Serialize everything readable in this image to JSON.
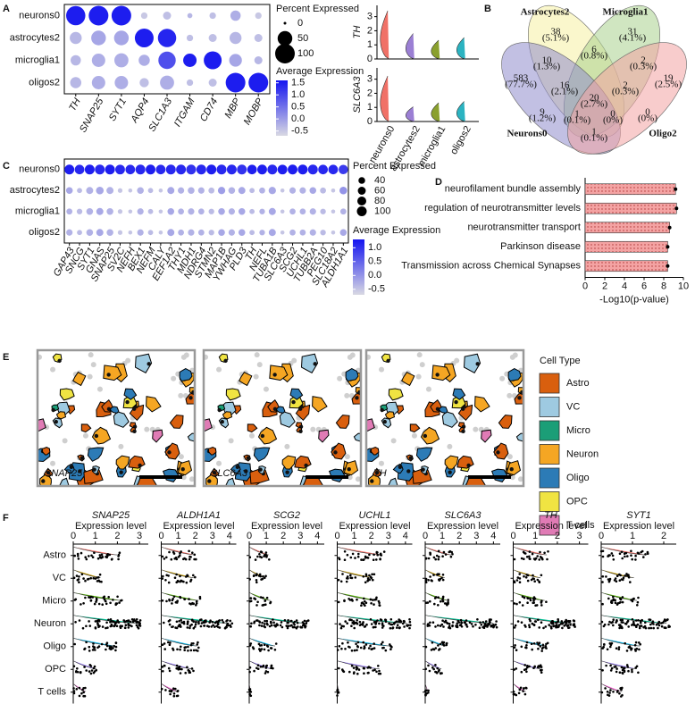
{
  "chart_data": [
    {
      "type": "dotplot",
      "panel": "A",
      "categories": [
        "TH",
        "SNAP25",
        "SYT1",
        "AQP4",
        "SLC1A3",
        "ITGAM",
        "CD74",
        "MBP",
        "MOBP"
      ],
      "series": [
        {
          "name": "neurons0",
          "pct": [
            95,
            100,
            100,
            5,
            10,
            2,
            5,
            20,
            5
          ],
          "avg": [
            1.5,
            1.5,
            1.5,
            -0.5,
            -0.4,
            -0.3,
            -0.4,
            -0.2,
            -0.5
          ]
        },
        {
          "name": "astrocytes2",
          "pct": [
            30,
            50,
            50,
            90,
            85,
            5,
            10,
            30,
            10
          ],
          "avg": [
            -0.3,
            -0.1,
            -0.1,
            1.5,
            1.4,
            -0.4,
            -0.4,
            -0.3,
            -0.4
          ]
        },
        {
          "name": "microglia1",
          "pct": [
            20,
            40,
            45,
            25,
            75,
            40,
            80,
            35,
            10
          ],
          "avg": [
            -0.3,
            -0.2,
            -0.2,
            -0.2,
            0.9,
            1.5,
            1.5,
            -0.1,
            -0.3
          ]
        },
        {
          "name": "oligos2",
          "pct": [
            25,
            40,
            40,
            15,
            45,
            5,
            10,
            100,
            100
          ],
          "avg": [
            -0.3,
            -0.2,
            -0.2,
            -0.4,
            -0.2,
            -0.4,
            -0.4,
            1.5,
            1.5
          ]
        }
      ],
      "size_legend_title": "Percent Expressed",
      "sizelim": [
        0,
        100
      ],
      "size_ticks": [
        0,
        50,
        100
      ],
      "color_legend_title": "Average Expression",
      "colorlim": [
        -0.7,
        1.6
      ],
      "color_ticks": [
        1.5,
        {
          "value": 1,
          "label": "1.0"
        },
        0.5,
        {
          "value": 0,
          "label": "0.0"
        },
        -0.5
      ],
      "colors": [
        "#d9d9e3",
        "#1414f0"
      ]
    },
    {
      "type": "violin",
      "categories": [
        "neurons0",
        "astrocytes2",
        "microglia1",
        "oligos2"
      ],
      "colors": [
        "#f07167",
        "#9b7fd4",
        "#8aa02e",
        "#2bb3c1"
      ],
      "series": [
        {
          "name": "TH",
          "values": [
            3.6,
            1.9,
            1.4,
            1.6
          ]
        },
        {
          "name": "SLC6A3",
          "values": [
            3.4,
            1.1,
            1.4,
            1.5
          ]
        }
      ],
      "ylim": [
        0,
        3.8
      ],
      "yticks": [
        0,
        1,
        2,
        3
      ]
    },
    {
      "type": "venn",
      "panel": "B",
      "sets": [
        {
          "name": "Astrocytes2",
          "color": "#f6f1a3",
          "label_color": "#9a8a20"
        },
        {
          "name": "Microglia1",
          "color": "#a9d18e",
          "label_color": "#3a7a2a"
        },
        {
          "name": "Neurons0",
          "color": "#8f8dcc",
          "label_color": "#2a4fa0"
        },
        {
          "name": "Oligo2",
          "color": "#f2a3a3",
          "label_color": "#c03030"
        }
      ],
      "regions": [
        {
          "count": 38,
          "percent": "(5.1%)"
        },
        {
          "count": 31,
          "percent": "(4.1%)"
        },
        {
          "count": 583,
          "percent": "(77.7%)"
        },
        {
          "count": 19,
          "percent": "(2.5%)"
        },
        {
          "count": 6,
          "percent": "(0.8%)"
        },
        {
          "count": 10,
          "percent": "(1.3%)"
        },
        {
          "count": 2,
          "percent": "(0.3%)"
        },
        {
          "count": 16,
          "percent": "(2.1%)"
        },
        {
          "count": 2,
          "percent": "(0.3%)"
        },
        {
          "count": 20,
          "percent": "(2.7%)"
        },
        {
          "count": 9,
          "percent": "(1.2%)"
        },
        {
          "count": 0,
          "percent": "(0%)"
        },
        {
          "count": 1,
          "percent": "(0.1%)"
        },
        {
          "count": 0,
          "percent": "(0%)"
        },
        {
          "count": 1,
          "percent": "(0.1%)"
        }
      ]
    },
    {
      "type": "dotplot",
      "panel": "C",
      "categories": [
        "GAP43",
        "SNCG",
        "SYT1",
        "GNAS",
        "SNAP25",
        "SV2C",
        "NEFH",
        "BEX1",
        "NEFM",
        "CALY",
        "EEF1A2",
        "THY1",
        "MDH1",
        "NDRG4",
        "STMN2",
        "MAP1B",
        "YWHAG",
        "PLD3",
        "TH",
        "NEFL",
        "TUBA1B",
        "SLC6A3",
        "SCG2",
        "UCHL1",
        "TUBB2A",
        "PEG10",
        "SLC18A2",
        "ALDH1A1"
      ],
      "series": [
        {
          "name": "neurons0",
          "pct": [
            98,
            95,
            100,
            100,
            100,
            97,
            95,
            100,
            98,
            95,
            100,
            100,
            98,
            100,
            100,
            100,
            100,
            98,
            95,
            98,
            100,
            97,
            98,
            100,
            100,
            95,
            95,
            90
          ],
          "avg": [
            1.2,
            1.1,
            1.2,
            1.1,
            1.2,
            1.1,
            1.1,
            1.1,
            1.2,
            1.1,
            1.1,
            1.1,
            1.0,
            1.1,
            1.2,
            1.1,
            1.1,
            1.0,
            1.2,
            1.2,
            1.1,
            1.2,
            1.2,
            1.2,
            1.1,
            1.1,
            1.1,
            0.9
          ]
        },
        {
          "name": "astrocytes2",
          "pct": [
            40,
            20,
            45,
            55,
            45,
            15,
            10,
            40,
            20,
            10,
            45,
            35,
            40,
            35,
            30,
            50,
            40,
            45,
            20,
            30,
            50,
            10,
            35,
            35,
            40,
            30,
            10,
            55
          ],
          "avg": [
            -0.2,
            -0.4,
            -0.3,
            -0.2,
            -0.3,
            -0.5,
            -0.5,
            -0.3,
            -0.4,
            -0.5,
            -0.2,
            -0.3,
            -0.3,
            -0.3,
            -0.4,
            -0.1,
            -0.3,
            -0.2,
            -0.4,
            -0.3,
            -0.2,
            -0.5,
            -0.3,
            -0.3,
            -0.2,
            -0.4,
            -0.5,
            0
          ]
        },
        {
          "name": "microglia1",
          "pct": [
            30,
            25,
            40,
            45,
            40,
            15,
            10,
            35,
            20,
            10,
            40,
            30,
            35,
            30,
            25,
            40,
            35,
            40,
            20,
            25,
            45,
            10,
            30,
            30,
            35,
            25,
            10,
            30
          ],
          "avg": [
            -0.3,
            -0.4,
            -0.3,
            -0.2,
            -0.3,
            -0.5,
            -0.5,
            -0.3,
            -0.4,
            -0.5,
            -0.2,
            -0.3,
            -0.3,
            -0.3,
            -0.4,
            -0.2,
            -0.3,
            -0.2,
            -0.4,
            -0.3,
            -0.2,
            -0.5,
            -0.3,
            -0.3,
            -0.3,
            -0.4,
            -0.5,
            -0.3
          ]
        },
        {
          "name": "oligos2",
          "pct": [
            35,
            20,
            40,
            45,
            40,
            15,
            10,
            35,
            20,
            10,
            45,
            30,
            35,
            30,
            25,
            40,
            35,
            40,
            20,
            25,
            45,
            10,
            30,
            30,
            35,
            25,
            10,
            40
          ],
          "avg": [
            -0.3,
            -0.4,
            -0.3,
            -0.2,
            -0.3,
            -0.5,
            -0.5,
            -0.3,
            -0.4,
            -0.5,
            -0.2,
            -0.3,
            -0.3,
            -0.3,
            -0.4,
            -0.2,
            -0.3,
            -0.2,
            -0.4,
            -0.3,
            -0.2,
            -0.5,
            -0.3,
            -0.3,
            -0.3,
            -0.4,
            -0.5,
            -0.2
          ]
        }
      ],
      "size_legend_title": "Percent Expressed",
      "sizelim": [
        0,
        100
      ],
      "size_ticks": [
        40,
        60,
        80,
        100
      ],
      "color_legend_title": "Average Expression",
      "colorlim": [
        -0.7,
        1.3
      ],
      "color_ticks": [
        {
          "value": 1,
          "label": "1.0"
        },
        0.5,
        {
          "value": 0,
          "label": "0.0"
        },
        -0.5
      ],
      "colors": [
        "#d9d9e3",
        "#1414f0"
      ]
    },
    {
      "type": "barh",
      "panel": "D",
      "categories": [
        "neurofilament bundle assembly",
        "regulation of neurotransmitter levels",
        "neurotransmitter transport",
        "Parkinson disease",
        "Transmission across Chemical Synapses"
      ],
      "values": [
        9.2,
        9.3,
        8.6,
        8.4,
        8.4
      ],
      "errors": [
        0.15,
        0.15,
        0.15,
        0.15,
        0.15
      ],
      "xlabel": "-Log10(p-value)",
      "xlim": [
        0,
        10
      ],
      "xticks": [
        0,
        2,
        4,
        6,
        8,
        10
      ],
      "color": "#f4a3a3"
    },
    {
      "type": "spatial",
      "panel": "E",
      "images": [
        "SNAP25",
        "SLC6A3",
        "TH"
      ],
      "legend_title": "Cell Type",
      "categories": [
        "Astro",
        "VC",
        "Micro",
        "Neuron",
        "Oligo",
        "OPC",
        "T cells"
      ],
      "colors": [
        "#d95f0e",
        "#9ecae1",
        "#1b9e77",
        "#f5a623",
        "#2c7bb6",
        "#f0e442",
        "#e07bb5"
      ]
    },
    {
      "type": "violin_grid",
      "panel": "F",
      "categories": [
        "Astro",
        "VC",
        "Micro",
        "Neuron",
        "Oligo",
        "OPC",
        "T cells"
      ],
      "colors": [
        "#F8766D",
        "#C49A00",
        "#53B400",
        "#00C094",
        "#00B6EB",
        "#A58AFF",
        "#FB61D7"
      ],
      "xlabel": "Expression level",
      "series": [
        {
          "name": "SNAP25",
          "values": [
            2.1,
            1.3,
            2.3,
            3.1,
            2.0,
            1.1,
            0.6
          ],
          "xlim": [
            0,
            3.4
          ],
          "xticks": [
            0,
            1,
            2,
            3
          ]
        },
        {
          "name": "ALDH1A1",
          "values": [
            2.1,
            2.0,
            2.3,
            4.2,
            2.2,
            1.9,
            1.0
          ],
          "xlim": [
            0,
            4.4
          ],
          "xticks": [
            0,
            1,
            2,
            3,
            4
          ]
        },
        {
          "name": "SCG2",
          "values": [
            1.2,
            1.0,
            1.3,
            3.5,
            1.6,
            1.4,
            0.1
          ],
          "xlim": [
            0,
            4.4
          ],
          "xticks": [
            0,
            1,
            2,
            3,
            4
          ]
        },
        {
          "name": "UCHL1",
          "values": [
            2.8,
            2.2,
            2.5,
            4.3,
            3.3,
            2.6,
            0.1
          ],
          "xlim": [
            0,
            4.4
          ],
          "xticks": [
            0,
            1,
            2,
            3,
            4
          ]
        },
        {
          "name": "SLC6A3",
          "values": [
            1.6,
            1.2,
            1.4,
            4.2,
            1.3,
            1.0,
            0.2
          ],
          "xlim": [
            0,
            4.4
          ],
          "xticks": [
            0,
            1,
            2,
            3,
            4
          ]
        },
        {
          "name": "TH",
          "values": [
            1.6,
            1.3,
            1.5,
            2.8,
            1.6,
            1.3,
            0.6
          ],
          "xlim": [
            0,
            3.4
          ],
          "xticks": [
            0,
            1,
            2,
            3
          ]
        },
        {
          "name": "SYT1",
          "values": [
            1.5,
            1.1,
            1.2,
            2.2,
            1.3,
            1.2,
            0.7
          ],
          "xlim": [
            0,
            2.4
          ],
          "xticks": [
            0,
            1,
            2
          ]
        }
      ]
    }
  ]
}
